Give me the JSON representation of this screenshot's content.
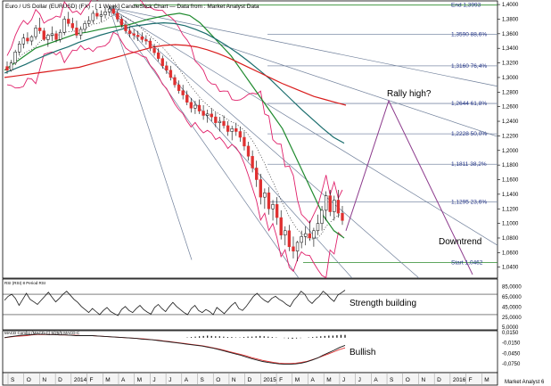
{
  "title": "Euro / US Dollar (EURUSD) (FX) - [ 1 Week] CandleStick Chart — Data from : Market Analyst Data",
  "colors": {
    "background": "#ffffff",
    "bull": "#ffffff",
    "bear": "#e03030",
    "wick": "#000000",
    "bollinger": "#e0206a",
    "ma_green": "#1f8a2e",
    "ma_teal": "#1a6d6d",
    "ma_red": "#d91c1c",
    "fan": "#6f7f9a",
    "fib": "#7f8ea8",
    "fib_label": "#223388",
    "projection": "#8c3a8c",
    "rsi": "#1a1a1a",
    "macd": "#1a1a1a",
    "macd_signal": "#e03030"
  },
  "annotations": {
    "rally": "Rally high?",
    "downtrend": "Downtrend",
    "strength": "Strength building",
    "bullish": "Bullish"
  },
  "panels": {
    "rsi_label": "RSI (RSI) 8 Period RSI",
    "macd_label": "MACD Combo (MACD-C) 5/25/5 MACD-C",
    "copyright": "Market Analyst 6"
  },
  "chart_data": [
    {
      "type": "candlestick",
      "title": "Euro / US Dollar (EURUSD) (FX) - [ 1 Week] CandleStick Chart — Data from : Market Analyst Data",
      "xlabel": "",
      "ylabel": "",
      "ylim": [
        1.025,
        1.405
      ],
      "y_ticks": [
        "1,4000",
        "1,3800",
        "1,3600",
        "1,3400",
        "1,3200",
        "1,3000",
        "1,2800",
        "1,2600",
        "1,2400",
        "1,2200",
        "1,2000",
        "1,1800",
        "1,1600",
        "1,1400",
        "1,1200",
        "1,1000",
        "1,0800",
        "1,0600",
        "1,0400"
      ],
      "x_ticks": [
        "S",
        "O",
        "N",
        "D",
        "2014",
        "F",
        "M",
        "A",
        "M",
        "J",
        "J",
        "A",
        "S",
        "O",
        "N",
        "D",
        "2015",
        "F",
        "M",
        "A",
        "M",
        "J",
        "J",
        "A",
        "S",
        "O",
        "N",
        "D",
        "2016",
        "F",
        "M"
      ],
      "ohlc_weekly": [
        [
          1.315,
          1.322,
          1.305,
          1.31
        ],
        [
          1.31,
          1.324,
          1.308,
          1.32
        ],
        [
          1.32,
          1.338,
          1.317,
          1.335
        ],
        [
          1.335,
          1.35,
          1.33,
          1.346
        ],
        [
          1.346,
          1.36,
          1.34,
          1.354
        ],
        [
          1.354,
          1.362,
          1.346,
          1.35
        ],
        [
          1.35,
          1.358,
          1.344,
          1.356
        ],
        [
          1.356,
          1.372,
          1.352,
          1.368
        ],
        [
          1.368,
          1.382,
          1.36,
          1.364
        ],
        [
          1.364,
          1.368,
          1.35,
          1.352
        ],
        [
          1.352,
          1.36,
          1.342,
          1.358
        ],
        [
          1.358,
          1.37,
          1.35,
          1.36
        ],
        [
          1.36,
          1.364,
          1.348,
          1.352
        ],
        [
          1.352,
          1.366,
          1.348,
          1.362
        ],
        [
          1.362,
          1.384,
          1.358,
          1.38
        ],
        [
          1.38,
          1.39,
          1.37,
          1.374
        ],
        [
          1.374,
          1.382,
          1.364,
          1.368
        ],
        [
          1.368,
          1.378,
          1.354,
          1.358
        ],
        [
          1.358,
          1.37,
          1.352,
          1.366
        ],
        [
          1.366,
          1.378,
          1.362,
          1.374
        ],
        [
          1.374,
          1.384,
          1.37,
          1.378
        ],
        [
          1.378,
          1.392,
          1.374,
          1.388
        ],
        [
          1.388,
          1.394,
          1.38,
          1.384
        ],
        [
          1.384,
          1.392,
          1.376,
          1.386
        ],
        [
          1.386,
          1.396,
          1.381,
          1.39
        ],
        [
          1.39,
          1.398,
          1.384,
          1.394
        ],
        [
          1.394,
          1.399,
          1.386,
          1.388
        ],
        [
          1.388,
          1.392,
          1.376,
          1.38
        ],
        [
          1.38,
          1.384,
          1.368,
          1.372
        ],
        [
          1.372,
          1.378,
          1.36,
          1.364
        ],
        [
          1.364,
          1.37,
          1.355,
          1.36
        ],
        [
          1.36,
          1.366,
          1.352,
          1.358
        ],
        [
          1.358,
          1.364,
          1.35,
          1.356
        ],
        [
          1.356,
          1.362,
          1.348,
          1.352
        ],
        [
          1.352,
          1.358,
          1.345,
          1.35
        ],
        [
          1.35,
          1.354,
          1.336,
          1.34
        ],
        [
          1.34,
          1.346,
          1.33,
          1.334
        ],
        [
          1.334,
          1.34,
          1.322,
          1.326
        ],
        [
          1.326,
          1.33,
          1.312,
          1.316
        ],
        [
          1.316,
          1.322,
          1.305,
          1.31
        ],
        [
          1.31,
          1.316,
          1.296,
          1.3
        ],
        [
          1.3,
          1.304,
          1.286,
          1.29
        ],
        [
          1.29,
          1.296,
          1.278,
          1.282
        ],
        [
          1.282,
          1.29,
          1.27,
          1.276
        ],
        [
          1.276,
          1.282,
          1.262,
          1.266
        ],
        [
          1.266,
          1.272,
          1.252,
          1.258
        ],
        [
          1.258,
          1.268,
          1.25,
          1.262
        ],
        [
          1.262,
          1.27,
          1.25,
          1.254
        ],
        [
          1.254,
          1.262,
          1.242,
          1.248
        ],
        [
          1.248,
          1.256,
          1.238,
          1.25
        ],
        [
          1.25,
          1.258,
          1.24,
          1.246
        ],
        [
          1.246,
          1.252,
          1.232,
          1.238
        ],
        [
          1.238,
          1.246,
          1.226,
          1.24
        ],
        [
          1.24,
          1.248,
          1.23,
          1.234
        ],
        [
          1.234,
          1.24,
          1.22,
          1.226
        ],
        [
          1.226,
          1.234,
          1.214,
          1.23
        ],
        [
          1.23,
          1.238,
          1.22,
          1.226
        ],
        [
          1.226,
          1.232,
          1.212,
          1.218
        ],
        [
          1.218,
          1.226,
          1.2,
          1.206
        ],
        [
          1.206,
          1.212,
          1.186,
          1.192
        ],
        [
          1.192,
          1.2,
          1.17,
          1.176
        ],
        [
          1.176,
          1.186,
          1.15,
          1.16
        ],
        [
          1.16,
          1.168,
          1.126,
          1.136
        ],
        [
          1.136,
          1.148,
          1.12,
          1.142
        ],
        [
          1.142,
          1.15,
          1.112,
          1.12
        ],
        [
          1.12,
          1.132,
          1.104,
          1.126
        ],
        [
          1.126,
          1.136,
          1.098,
          1.108
        ],
        [
          1.108,
          1.118,
          1.078,
          1.084
        ],
        [
          1.084,
          1.096,
          1.07,
          1.09
        ],
        [
          1.09,
          1.098,
          1.062,
          1.068
        ],
        [
          1.068,
          1.082,
          1.052,
          1.062
        ],
        [
          1.062,
          1.076,
          1.048,
          1.074
        ],
        [
          1.074,
          1.09,
          1.066,
          1.082
        ],
        [
          1.082,
          1.096,
          1.07,
          1.086
        ],
        [
          1.086,
          1.104,
          1.076,
          1.08
        ],
        [
          1.08,
          1.094,
          1.068,
          1.09
        ],
        [
          1.09,
          1.112,
          1.084,
          1.1
        ],
        [
          1.1,
          1.124,
          1.09,
          1.118
        ],
        [
          1.118,
          1.144,
          1.104,
          1.138
        ],
        [
          1.138,
          1.146,
          1.11,
          1.116
        ],
        [
          1.116,
          1.138,
          1.104,
          1.132
        ],
        [
          1.132,
          1.146,
          1.108,
          1.114
        ],
        [
          1.114,
          1.124,
          1.098,
          1.104
        ]
      ],
      "moving_averages": [
        {
          "name": "",
          "color": "green",
          "values": [
            1.31,
            1.32,
            1.33,
            1.34,
            1.345,
            1.35,
            1.355,
            1.36,
            1.362,
            1.365,
            1.368,
            1.37,
            1.372,
            1.376,
            1.38,
            1.383,
            1.386,
            1.388,
            1.385,
            1.375,
            1.36,
            1.345,
            1.33,
            1.31,
            1.29,
            1.27,
            1.25,
            1.23,
            1.2,
            1.17,
            1.14,
            1.11,
            1.09,
            1.08
          ]
        },
        {
          "name": "",
          "color": "teal",
          "values": [
            1.306,
            1.312,
            1.318,
            1.325,
            1.331,
            1.337,
            1.342,
            1.348,
            1.353,
            1.358,
            1.362,
            1.366,
            1.37,
            1.372,
            1.374,
            1.375,
            1.374,
            1.371,
            1.366,
            1.36,
            1.352,
            1.343,
            1.333,
            1.322,
            1.31,
            1.298,
            1.284,
            1.27,
            1.256,
            1.243,
            1.23,
            1.218,
            1.21
          ]
        },
        {
          "name": "",
          "color": "red",
          "values": [
            1.3,
            1.302,
            1.304,
            1.306,
            1.308,
            1.31,
            1.312,
            1.314,
            1.318,
            1.322,
            1.326,
            1.33,
            1.334,
            1.338,
            1.342,
            1.344,
            1.345,
            1.344,
            1.342,
            1.338,
            1.333,
            1.327,
            1.32,
            1.313,
            1.306,
            1.299,
            1.292,
            1.286,
            1.28,
            1.274,
            1.27,
            1.266,
            1.262
          ]
        }
      ],
      "fibonacci_levels": [
        {
          "label": "End 1,3993",
          "value": 1.3993
        },
        {
          "label": "1,3590 88,6%",
          "value": 1.359
        },
        {
          "label": "1,3160 76,4%",
          "value": 1.316
        },
        {
          "label": "1,2644 61,8%",
          "value": 1.2644
        },
        {
          "label": "1,2228 50,0%",
          "value": 1.2228
        },
        {
          "label": "1,1811 38,2%",
          "value": 1.1811
        },
        {
          "label": "1,1295 23,6%",
          "value": 1.1295
        },
        {
          "label": "Start 1,0462",
          "value": 1.0462
        }
      ],
      "projection": {
        "from": 1.09,
        "peak": 1.268,
        "to": 1.03
      }
    },
    {
      "type": "line",
      "title": "RSI (RSI) 8 Period RSI",
      "ylim": [
        0,
        100
      ],
      "y_ticks": [
        "85,0000",
        "65,0000",
        "45,0000",
        "25,0000",
        "5,0000"
      ],
      "reference_levels": [
        70,
        30
      ],
      "values": [
        58,
        66,
        70,
        62,
        48,
        60,
        72,
        60,
        55,
        50,
        58,
        66,
        74,
        64,
        55,
        62,
        70,
        76,
        68,
        60,
        54,
        46,
        40,
        34,
        42,
        36,
        30,
        38,
        44,
        36,
        32,
        28,
        40,
        46,
        38,
        34,
        42,
        48,
        40,
        35,
        31,
        44,
        50,
        42,
        36,
        46,
        54,
        46,
        40,
        34,
        30,
        42,
        48,
        38,
        34,
        40,
        36,
        30,
        44,
        38,
        32,
        40,
        48,
        54,
        42,
        38,
        46,
        56,
        66,
        72,
        64,
        58,
        54,
        62,
        66,
        60,
        56,
        50,
        46,
        58,
        66,
        76,
        70,
        58,
        52,
        60,
        66,
        76,
        70,
        62,
        56,
        68,
        73,
        78
      ]
    },
    {
      "type": "line",
      "title": "MACD Combo (MACD-C) 5/25/5 MACD-C",
      "ylim": [
        -0.1,
        0.02
      ],
      "y_ticks": [
        "0,0150",
        "-0,0150",
        "-0,0450",
        "-0,0750"
      ],
      "macd": [
        0.0,
        0.003,
        0.005,
        0.007,
        0.008,
        0.009,
        0.01,
        0.01,
        0.009,
        0.009,
        0.008,
        0.008,
        0.007,
        0.006,
        0.006,
        0.006,
        0.006,
        0.005,
        0.004,
        0.003,
        0.002,
        0.001,
        0.0,
        -0.001,
        -0.002,
        -0.004,
        -0.005,
        -0.006,
        -0.008,
        -0.01,
        -0.012,
        -0.014,
        -0.016,
        -0.018,
        -0.02,
        -0.022,
        -0.024,
        -0.027,
        -0.03,
        -0.034,
        -0.038,
        -0.042,
        -0.046,
        -0.05,
        -0.055,
        -0.06,
        -0.064,
        -0.068,
        -0.071,
        -0.073,
        -0.075,
        -0.076,
        -0.076,
        -0.075,
        -0.073,
        -0.069,
        -0.064,
        -0.058,
        -0.05,
        -0.043,
        -0.036,
        -0.028,
        -0.022
      ],
      "signal": [
        0.0,
        0.002,
        0.004,
        0.005,
        0.006,
        0.008,
        0.009,
        0.009,
        0.009,
        0.009,
        0.008,
        0.008,
        0.007,
        0.007,
        0.006,
        0.006,
        0.006,
        0.005,
        0.004,
        0.003,
        0.002,
        0.001,
        0.0,
        -0.001,
        -0.002,
        -0.003,
        -0.004,
        -0.006,
        -0.007,
        -0.009,
        -0.011,
        -0.013,
        -0.015,
        -0.017,
        -0.019,
        -0.021,
        -0.023,
        -0.026,
        -0.029,
        -0.032,
        -0.036,
        -0.04,
        -0.044,
        -0.048,
        -0.052,
        -0.057,
        -0.061,
        -0.065,
        -0.068,
        -0.071,
        -0.073,
        -0.074,
        -0.074,
        -0.073,
        -0.071,
        -0.068,
        -0.063,
        -0.058,
        -0.052,
        -0.046,
        -0.04,
        -0.034,
        -0.029
      ],
      "histogram": [
        0.001,
        0.002,
        0.003,
        0.004,
        0.005,
        0.006,
        0.005,
        0.004,
        0.004,
        0.003,
        0.002,
        0.002,
        0.001,
        0.001,
        0.002,
        0.003,
        0.003,
        0.004,
        0.005,
        0.004,
        0.003,
        0.002,
        0.001,
        0.0,
        -0.001,
        -0.002,
        -0.003,
        -0.002,
        -0.001,
        0.0,
        0.001,
        0.002,
        0.003,
        0.004,
        0.005,
        0.006,
        0.006,
        0.007,
        0.008,
        0.008
      ]
    }
  ]
}
